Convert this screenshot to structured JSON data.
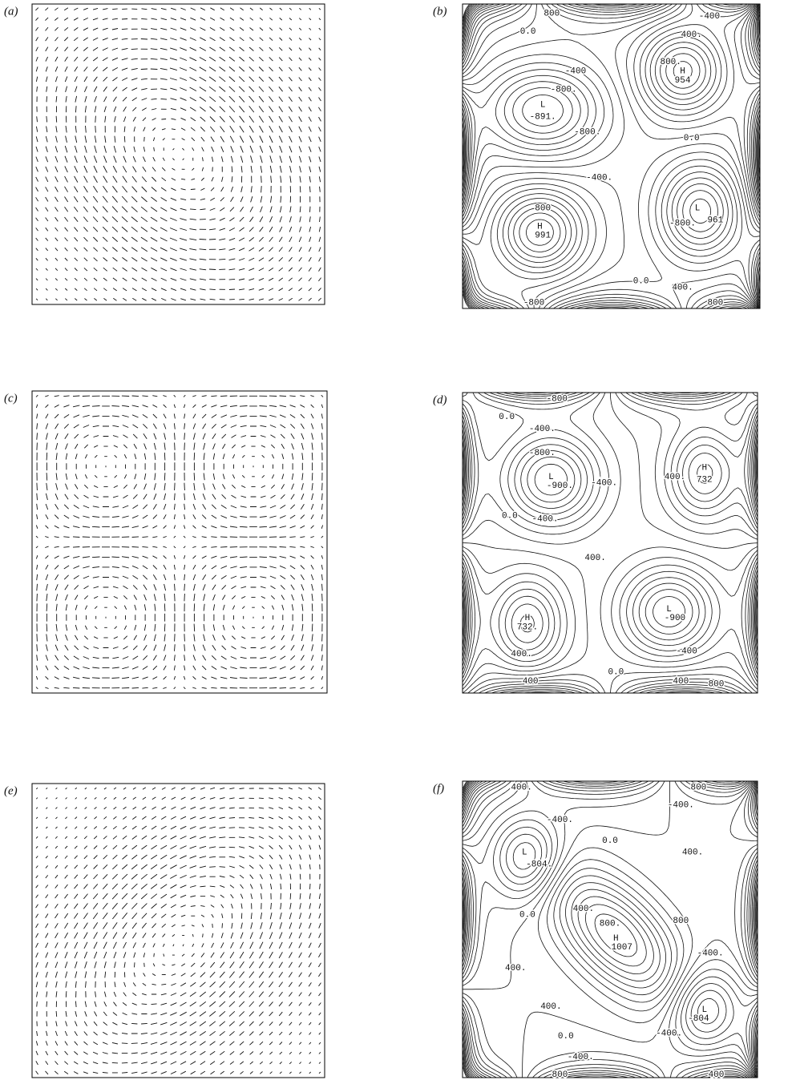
{
  "panels": [
    {
      "label": "(a)"
    },
    {
      "label": "(b)",
      "annotations": [
        "800",
        "-400",
        "0.0",
        "400.",
        "-400",
        "-800.",
        "L",
        "-891.",
        "800.",
        "H",
        "954",
        "-800.",
        "0.0",
        "-400.",
        "H",
        "991",
        "800",
        "L",
        "961",
        "-800.",
        "0.0",
        "400.",
        "-800",
        "800"
      ]
    },
    {
      "label": "(c)"
    },
    {
      "label": "(d)",
      "annotations": [
        "-800",
        "0.0",
        "-400.",
        "-800.",
        "L",
        "-900.",
        "400.",
        "H",
        "732",
        "-400.",
        "0.0",
        "-400.",
        "400.",
        "L",
        "-900",
        "H",
        "732.",
        "400.",
        "0.0",
        "-400",
        "400",
        "800",
        "400"
      ]
    },
    {
      "label": "(e)"
    },
    {
      "label": "(f)",
      "annotations": [
        "400.",
        "800",
        "-400.",
        "-400.",
        "0.0",
        "400.",
        "L",
        "-804.",
        "400.",
        "0.0",
        "800.",
        "800",
        "H",
        "1007",
        "-400.",
        "400.",
        "400.",
        "L",
        "-804",
        "0.0",
        "-400.",
        "-400.",
        "800",
        "400"
      ]
    }
  ]
}
